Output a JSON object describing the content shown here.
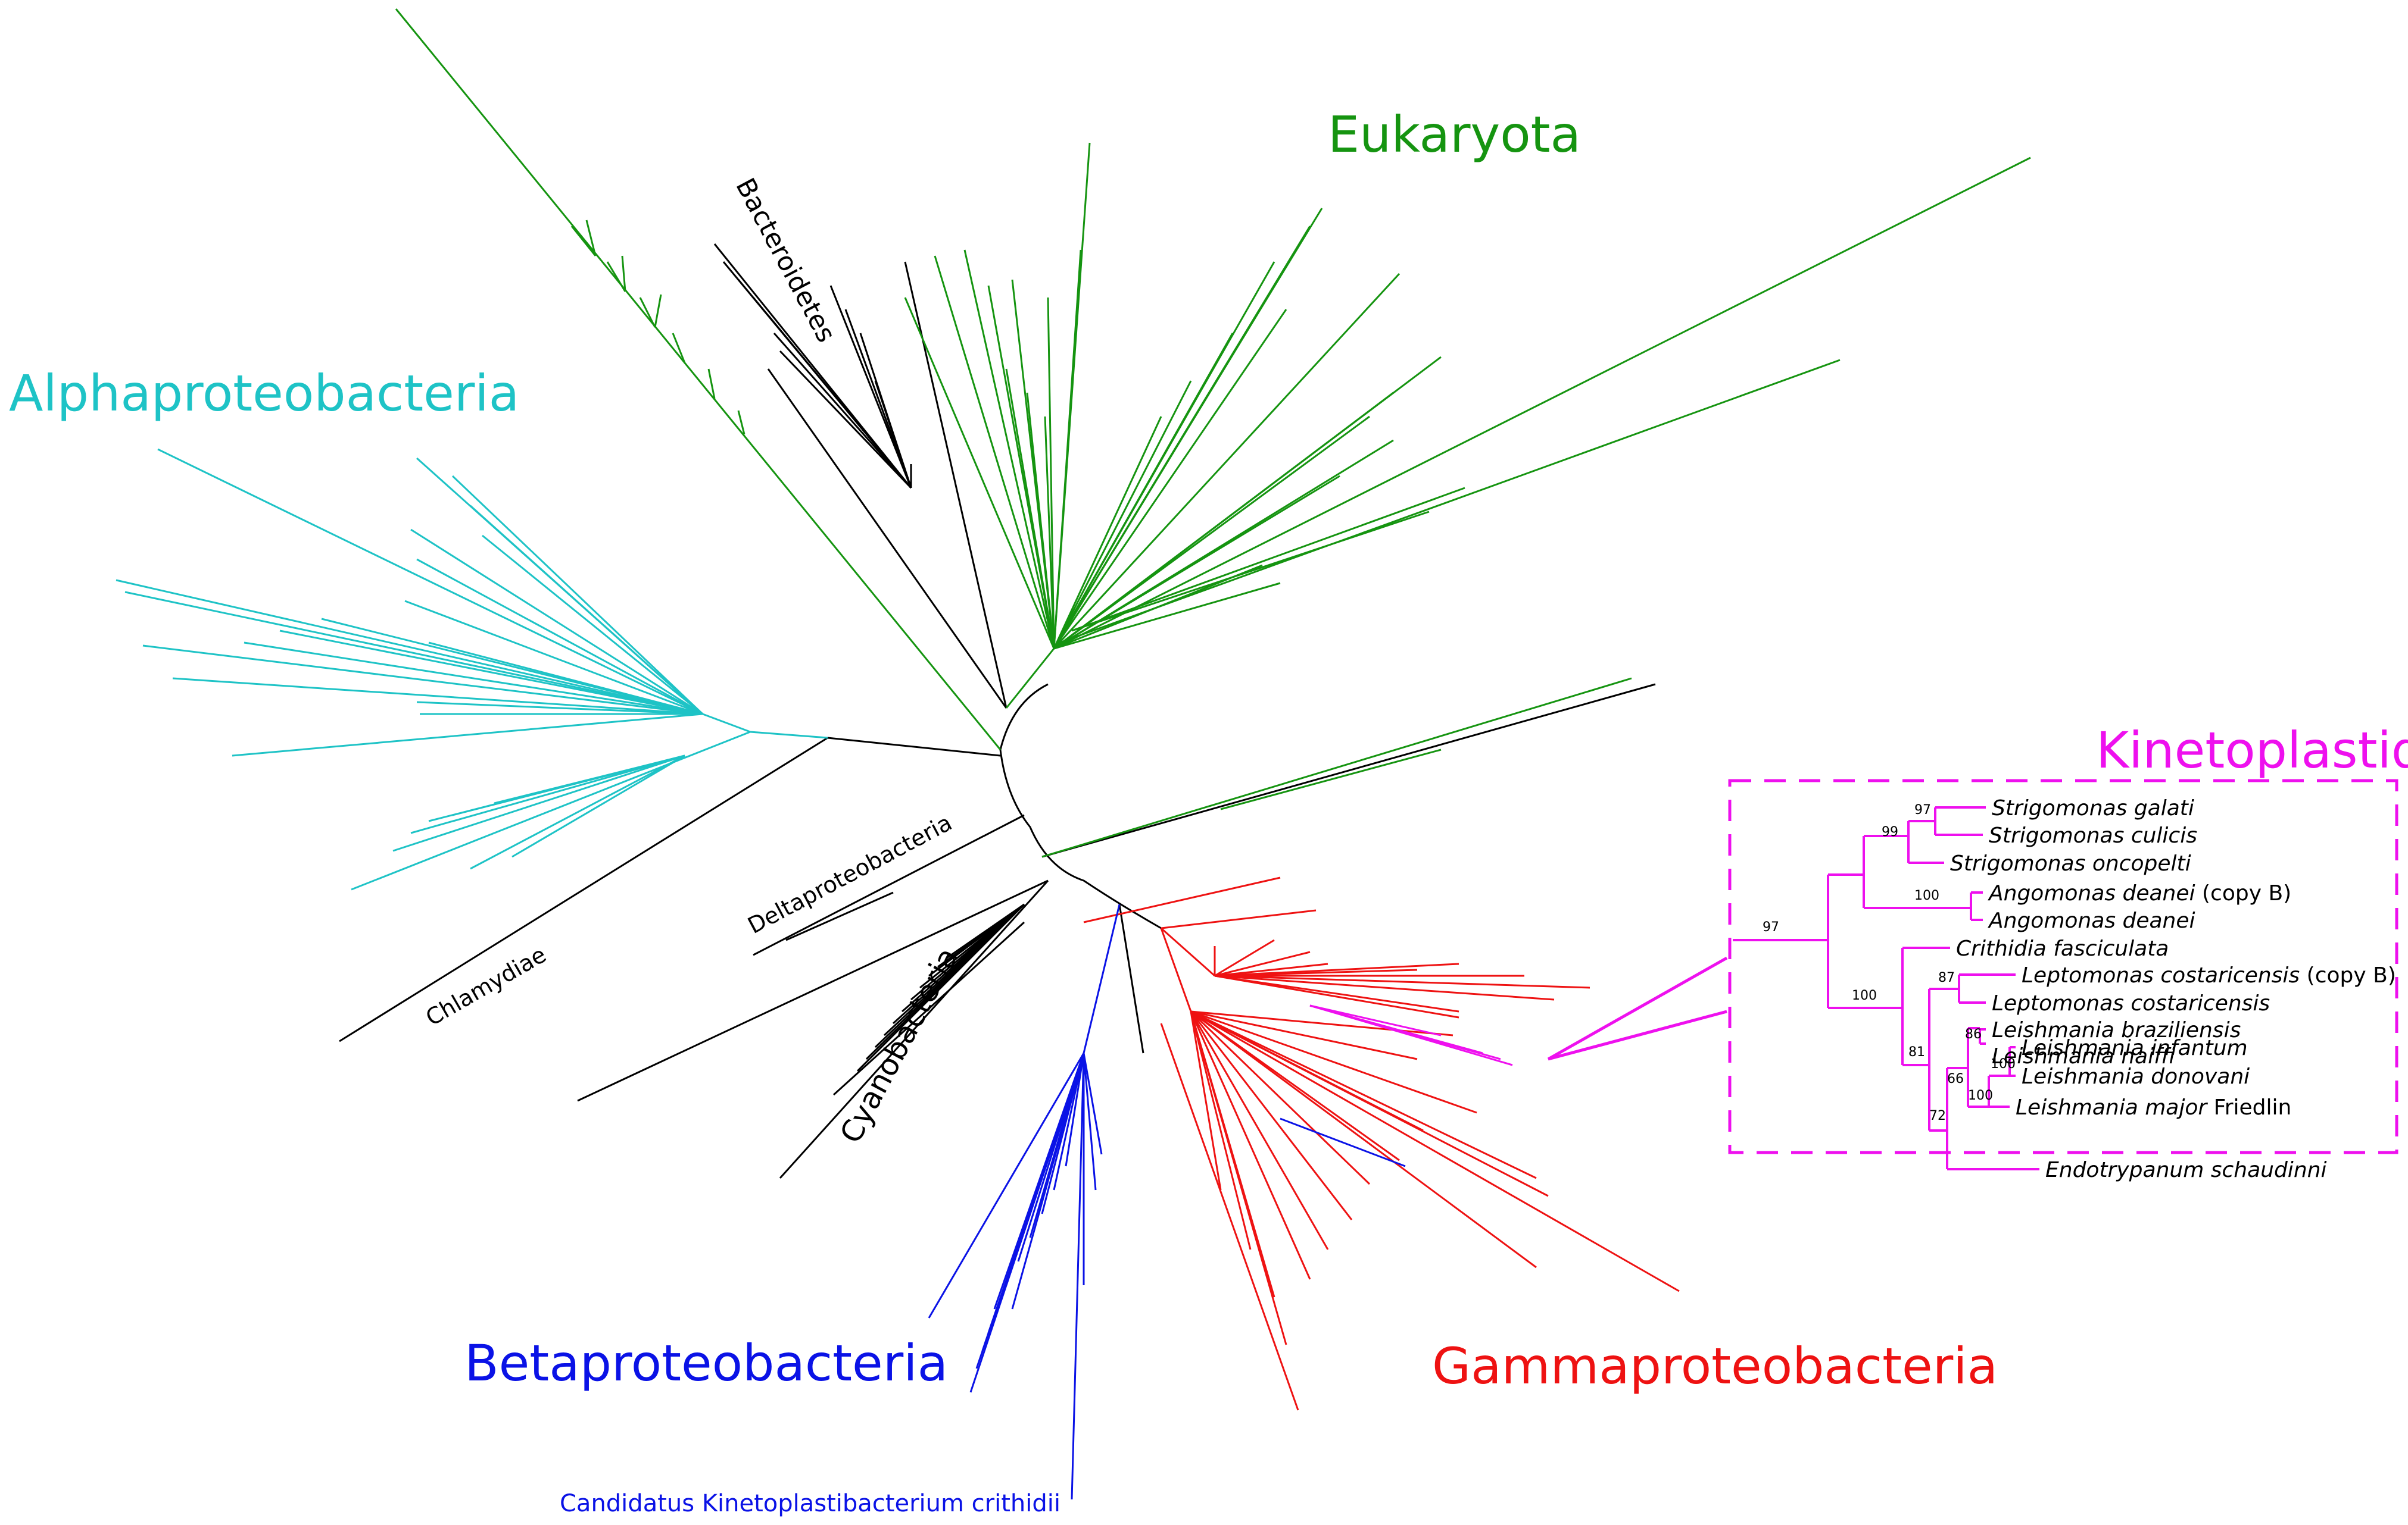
{
  "clades": {
    "eukaryota": {
      "label": "Eukaryota",
      "color": "#159410"
    },
    "alphaproteobacteria": {
      "label": "Alphaproteobacteria",
      "color": "#1ec3c6"
    },
    "betaproteobacteria": {
      "label": "Betaproteobacteria",
      "color": "#0a12e6"
    },
    "gammaproteobacteria": {
      "label": "Gammaproteobacteria",
      "color": "#ee1212"
    },
    "kinetoplastida": {
      "label": "Kinetoplastida",
      "color": "#ee10ee"
    },
    "bacteroidetes": {
      "label": "Bacteroidetes",
      "color": "#000000"
    },
    "chlamydiae": {
      "label": "Chlamydiae",
      "color": "#000000"
    },
    "deltaproteobacteria": {
      "label": "Deltaproteobacteria",
      "color": "#000000"
    },
    "cyanobacteria": {
      "label": "Cyanobacteria",
      "color": "#000000"
    }
  },
  "symbiont": {
    "label": "Candidatus Kinetoplastibacterium crithidii",
    "color": "#0a12e6"
  },
  "inset": {
    "taxa": [
      {
        "name": "Strigomonas galati",
        "note": ""
      },
      {
        "name": "Strigomonas culicis",
        "note": ""
      },
      {
        "name": "Strigomonas oncopelti",
        "note": ""
      },
      {
        "name": "Angomonas deanei",
        "note": "(copy B)"
      },
      {
        "name": "Angomonas deanei",
        "note": ""
      },
      {
        "name": "Crithidia fasciculata",
        "note": ""
      },
      {
        "name": "Leptomonas costaricensis",
        "note": "(copy B)"
      },
      {
        "name": "Leptomonas costaricensis",
        "note": ""
      },
      {
        "name": "Leishmania braziliensis",
        "note": ""
      },
      {
        "name": "Leishmania naiffi",
        "note": ""
      },
      {
        "name": "Leishmania infantum",
        "note": ""
      },
      {
        "name": "Leishmania donovani",
        "note": ""
      },
      {
        "name": "Leishmania major",
        "note": "Friedlin"
      },
      {
        "name": "Endotrypanum schaudinni",
        "note": ""
      }
    ],
    "bootstrap": {
      "root": "97",
      "strigomonas_angomonas": "99",
      "strigomonas_galati_culicis": "97",
      "angomonas": "100",
      "crithidia_group": "100",
      "leptomonas": "87",
      "leishmania_group": "81",
      "viannia": "86",
      "leishmania_endotrypanum": "72",
      "leishmania_major_group": "66",
      "donovani_complex": "100",
      "infantum_donovani": "100"
    }
  }
}
